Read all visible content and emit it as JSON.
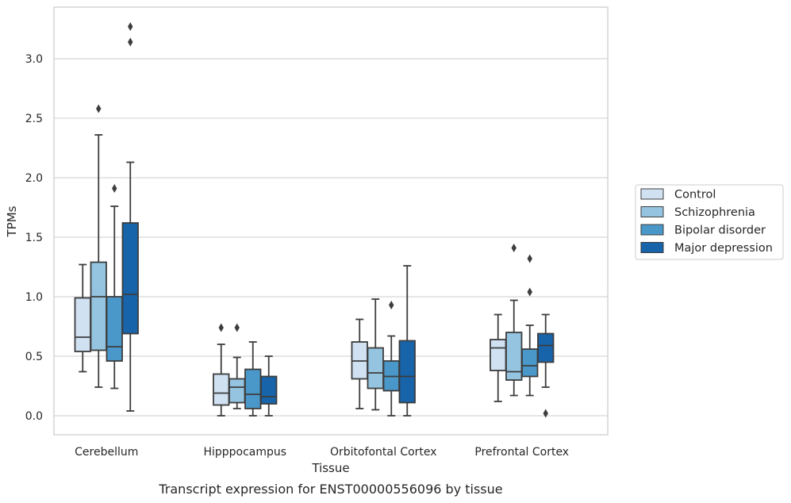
{
  "caption": "Transcript expression for ENST00000556096 by tissue",
  "chart_data": {
    "type": "box",
    "xlabel": "Tissue",
    "ylabel": "TPMs",
    "ylim": [
      -0.16,
      3.43
    ],
    "yticks": [
      "0.0",
      "0.5",
      "1.0",
      "1.5",
      "2.0",
      "2.5",
      "3.0"
    ],
    "grid": "horizontal",
    "legend_position": "right",
    "categories": [
      "Cerebellum",
      "Hipppocampus",
      "Orbitofontal Cortex",
      "Prefrontal Cortex"
    ],
    "series": [
      {
        "name": "Control",
        "color": "#d0e1f2",
        "boxes": [
          {
            "whislo": 0.37,
            "q1": 0.54,
            "med": 0.66,
            "q3": 0.99,
            "whishi": 1.27,
            "fliers": []
          },
          {
            "whislo": 0.0,
            "q1": 0.09,
            "med": 0.19,
            "q3": 0.35,
            "whishi": 0.6,
            "fliers": [
              0.74
            ]
          },
          {
            "whislo": 0.06,
            "q1": 0.31,
            "med": 0.46,
            "q3": 0.62,
            "whishi": 0.81,
            "fliers": []
          },
          {
            "whislo": 0.12,
            "q1": 0.38,
            "med": 0.57,
            "q3": 0.64,
            "whishi": 0.85,
            "fliers": []
          }
        ]
      },
      {
        "name": "Schizophrenia",
        "color": "#94c4df",
        "boxes": [
          {
            "whislo": 0.24,
            "q1": 0.55,
            "med": 1.0,
            "q3": 1.29,
            "whishi": 2.36,
            "fliers": [
              2.58
            ]
          },
          {
            "whislo": 0.06,
            "q1": 0.11,
            "med": 0.24,
            "q3": 0.31,
            "whishi": 0.49,
            "fliers": [
              0.74
            ]
          },
          {
            "whislo": 0.05,
            "q1": 0.23,
            "med": 0.36,
            "q3": 0.57,
            "whishi": 0.98,
            "fliers": []
          },
          {
            "whislo": 0.17,
            "q1": 0.3,
            "med": 0.37,
            "q3": 0.7,
            "whishi": 0.97,
            "fliers": [
              1.41
            ]
          }
        ]
      },
      {
        "name": "Bipolar disorder",
        "color": "#4a98c9",
        "boxes": [
          {
            "whislo": 0.23,
            "q1": 0.46,
            "med": 0.58,
            "q3": 1.0,
            "whishi": 1.76,
            "fliers": [
              1.91
            ]
          },
          {
            "whislo": 0.0,
            "q1": 0.06,
            "med": 0.18,
            "q3": 0.39,
            "whishi": 0.62,
            "fliers": []
          },
          {
            "whislo": 0.0,
            "q1": 0.21,
            "med": 0.33,
            "q3": 0.46,
            "whishi": 0.67,
            "fliers": [
              0.93
            ]
          },
          {
            "whislo": 0.17,
            "q1": 0.33,
            "med": 0.42,
            "q3": 0.56,
            "whishi": 0.76,
            "fliers": [
              1.04,
              1.32
            ]
          }
        ]
      },
      {
        "name": "Major depression",
        "color": "#1764ab",
        "boxes": [
          {
            "whislo": 0.04,
            "q1": 0.69,
            "med": 1.02,
            "q3": 1.62,
            "whishi": 2.13,
            "fliers": [
              3.14,
              3.27
            ]
          },
          {
            "whislo": 0.0,
            "q1": 0.1,
            "med": 0.16,
            "q3": 0.33,
            "whishi": 0.5,
            "fliers": []
          },
          {
            "whislo": 0.0,
            "q1": 0.11,
            "med": 0.33,
            "q3": 0.63,
            "whishi": 1.26,
            "fliers": []
          },
          {
            "whislo": 0.24,
            "q1": 0.45,
            "med": 0.59,
            "q3": 0.69,
            "whishi": 0.85,
            "fliers": [
              0.02
            ]
          }
        ]
      }
    ]
  }
}
